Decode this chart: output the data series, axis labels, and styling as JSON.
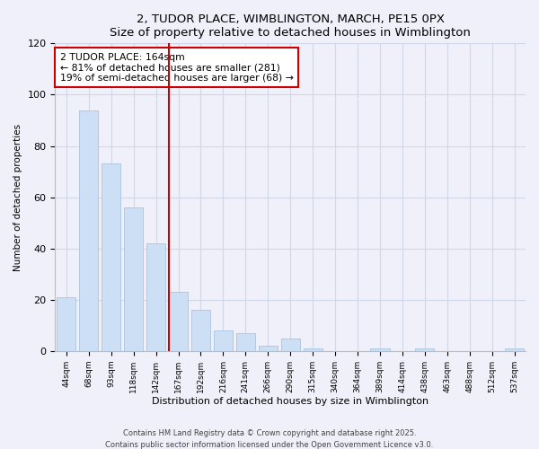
{
  "title": "2, TUDOR PLACE, WIMBLINGTON, MARCH, PE15 0PX",
  "subtitle": "Size of property relative to detached houses in Wimblington",
  "bar_labels": [
    "44sqm",
    "68sqm",
    "93sqm",
    "118sqm",
    "142sqm",
    "167sqm",
    "192sqm",
    "216sqm",
    "241sqm",
    "266sqm",
    "290sqm",
    "315sqm",
    "340sqm",
    "364sqm",
    "389sqm",
    "414sqm",
    "438sqm",
    "463sqm",
    "488sqm",
    "512sqm",
    "537sqm"
  ],
  "bar_values": [
    21,
    94,
    73,
    56,
    42,
    23,
    16,
    8,
    7,
    2,
    5,
    1,
    0,
    0,
    1,
    0,
    1,
    0,
    0,
    0,
    1
  ],
  "bar_color": "#ccdff5",
  "bar_edge_color": "#aac4e0",
  "red_line_index": 5,
  "red_line_color": "#cc0000",
  "annotation_title": "2 TUDOR PLACE: 164sqm",
  "annotation_line2": "← 81% of detached houses are smaller (281)",
  "annotation_line3": "19% of semi-detached houses are larger (68) →",
  "annotation_box_edgecolor": "#cc0000",
  "ylabel": "Number of detached properties",
  "xlabel": "Distribution of detached houses by size in Wimblington",
  "ylim": [
    0,
    120
  ],
  "yticks": [
    0,
    20,
    40,
    60,
    80,
    100,
    120
  ],
  "footer1": "Contains HM Land Registry data © Crown copyright and database right 2025.",
  "footer2": "Contains public sector information licensed under the Open Government Licence v3.0.",
  "bg_color": "#f0f0fa",
  "grid_color": "#d0d8e8"
}
